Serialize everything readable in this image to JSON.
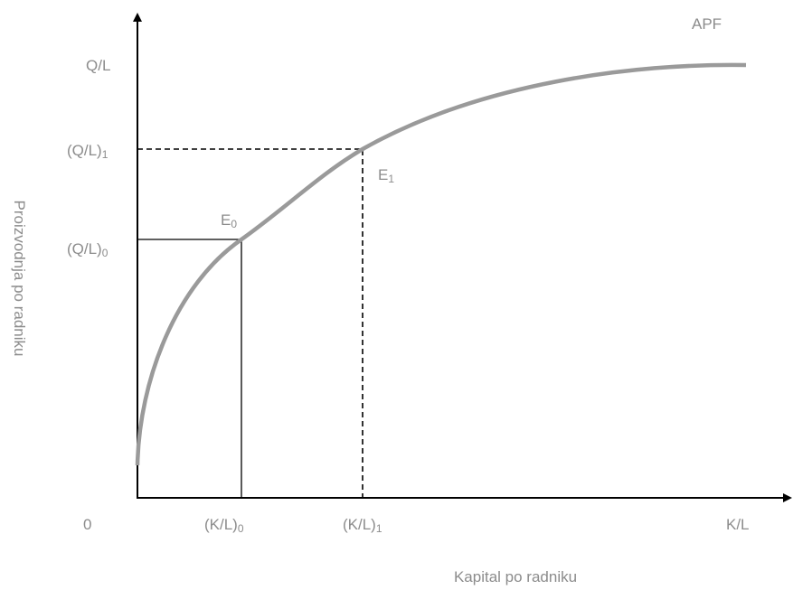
{
  "curve_label": "APF",
  "y_axis": {
    "title": "Proizvodnja po radniku",
    "top_label": "Q/L",
    "level_1": {
      "text": "(Q/L)",
      "sub": "1"
    },
    "level_0": {
      "text": "(Q/L)",
      "sub": "0"
    }
  },
  "x_axis": {
    "title": "Kapital po radniku",
    "origin": "0",
    "level_0": {
      "text": "(K/L)",
      "sub": "0"
    },
    "level_1": {
      "text": "(K/L)",
      "sub": "1"
    },
    "end_label": "K/L"
  },
  "points": [
    {
      "text": "E",
      "sub": "0"
    },
    {
      "text": "E",
      "sub": "1"
    }
  ]
}
